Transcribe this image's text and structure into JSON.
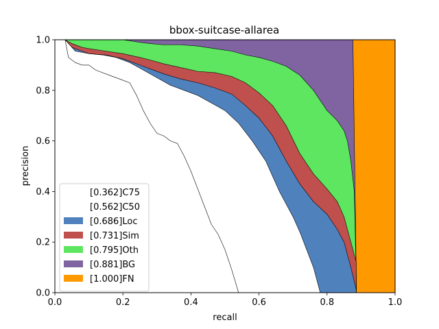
{
  "chart_data": {
    "type": "area",
    "title": "bbox-suitcase-allarea",
    "xlabel": "recall",
    "ylabel": "precision",
    "xlim": [
      0,
      1
    ],
    "ylim": [
      0,
      1
    ],
    "xticks": [
      "0.0",
      "0.2",
      "0.4",
      "0.6",
      "0.8",
      "1.0"
    ],
    "yticks": [
      "0.0",
      "0.2",
      "0.4",
      "0.6",
      "0.8",
      "1.0"
    ],
    "grid": false,
    "legend_position": "lower-left",
    "series": [
      {
        "name": "[1.000]FN",
        "color": "#ff9900",
        "x": [
          0.0,
          1.0
        ],
        "y": [
          1.0,
          1.0
        ]
      },
      {
        "name": "[0.881]BG",
        "color": "#8064a2",
        "x": [
          0.0,
          0.035,
          0.876,
          0.886,
          0.886
        ],
        "y": [
          1.0,
          1.0,
          1.0,
          0.05,
          0.0
        ]
      },
      {
        "name": "[0.795]Oth",
        "color": "#5ee660",
        "x": [
          0.0,
          0.03,
          0.05,
          0.1,
          0.15,
          0.2,
          0.25,
          0.28,
          0.32,
          0.37,
          0.42,
          0.47,
          0.52,
          0.56,
          0.6,
          0.64,
          0.68,
          0.72,
          0.76,
          0.8,
          0.83,
          0.85,
          0.86,
          0.87,
          0.88,
          0.886,
          0.886
        ],
        "y": [
          1.0,
          1.0,
          1.0,
          1.0,
          1.0,
          1.0,
          0.99,
          0.985,
          0.98,
          0.98,
          0.975,
          0.965,
          0.955,
          0.94,
          0.93,
          0.915,
          0.895,
          0.86,
          0.8,
          0.72,
          0.68,
          0.64,
          0.6,
          0.52,
          0.4,
          0.05,
          0.0
        ]
      },
      {
        "name": "[0.731]Sim",
        "color": "#c0504d",
        "x": [
          0.0,
          0.03,
          0.05,
          0.08,
          0.1,
          0.15,
          0.2,
          0.25,
          0.28,
          0.32,
          0.37,
          0.42,
          0.47,
          0.52,
          0.56,
          0.6,
          0.64,
          0.68,
          0.72,
          0.76,
          0.8,
          0.83,
          0.85,
          0.87,
          0.886,
          0.886
        ],
        "y": [
          1.0,
          1.0,
          0.985,
          0.97,
          0.965,
          0.955,
          0.945,
          0.93,
          0.92,
          0.905,
          0.89,
          0.875,
          0.87,
          0.855,
          0.83,
          0.79,
          0.74,
          0.66,
          0.55,
          0.47,
          0.41,
          0.36,
          0.3,
          0.2,
          0.12,
          0.0
        ]
      },
      {
        "name": "[0.686]Loc",
        "color": "#4f81bd",
        "x": [
          0.0,
          0.03,
          0.05,
          0.08,
          0.1,
          0.15,
          0.2,
          0.25,
          0.28,
          0.32,
          0.37,
          0.42,
          0.47,
          0.52,
          0.56,
          0.6,
          0.64,
          0.68,
          0.72,
          0.76,
          0.8,
          0.83,
          0.85,
          0.87,
          0.886,
          0.886
        ],
        "y": [
          1.0,
          1.0,
          0.97,
          0.955,
          0.945,
          0.94,
          0.925,
          0.9,
          0.885,
          0.865,
          0.845,
          0.83,
          0.81,
          0.785,
          0.74,
          0.69,
          0.62,
          0.52,
          0.43,
          0.36,
          0.31,
          0.25,
          0.2,
          0.1,
          0.01,
          0.0
        ]
      },
      {
        "name": "[0.562]C50",
        "color": "#ffffff",
        "x": [
          0.0,
          0.03,
          0.06,
          0.1,
          0.14,
          0.18,
          0.22,
          0.26,
          0.3,
          0.34,
          0.38,
          0.42,
          0.46,
          0.5,
          0.54,
          0.58,
          0.62,
          0.66,
          0.7,
          0.72,
          0.74,
          0.76,
          0.77,
          0.78
        ],
        "y": [
          1.0,
          1.0,
          0.955,
          0.945,
          0.94,
          0.93,
          0.91,
          0.88,
          0.85,
          0.82,
          0.8,
          0.78,
          0.75,
          0.72,
          0.67,
          0.6,
          0.52,
          0.4,
          0.3,
          0.24,
          0.17,
          0.1,
          0.05,
          0.0
        ]
      },
      {
        "name": "[0.362]C75",
        "color": "#ffffff",
        "x": [
          0.0,
          0.03,
          0.04,
          0.06,
          0.08,
          0.1,
          0.12,
          0.16,
          0.2,
          0.22,
          0.24,
          0.26,
          0.28,
          0.3,
          0.32,
          0.34,
          0.36,
          0.38,
          0.4,
          0.42,
          0.44,
          0.46,
          0.48,
          0.5,
          0.52,
          0.54
        ],
        "y": [
          1.0,
          1.0,
          0.93,
          0.91,
          0.9,
          0.9,
          0.88,
          0.86,
          0.84,
          0.83,
          0.78,
          0.72,
          0.67,
          0.63,
          0.62,
          0.6,
          0.59,
          0.54,
          0.48,
          0.41,
          0.34,
          0.27,
          0.23,
          0.17,
          0.09,
          0.0
        ]
      }
    ],
    "legend": [
      {
        "label": "[0.362]C75",
        "color": "#ffffff"
      },
      {
        "label": "[0.562]C50",
        "color": "#ffffff"
      },
      {
        "label": "[0.686]Loc",
        "color": "#4f81bd"
      },
      {
        "label": "[0.731]Sim",
        "color": "#c0504d"
      },
      {
        "label": "[0.795]Oth",
        "color": "#5ee660"
      },
      {
        "label": "[0.881]BG",
        "color": "#8064a2"
      },
      {
        "label": "[1.000]FN",
        "color": "#ff9900"
      }
    ]
  }
}
